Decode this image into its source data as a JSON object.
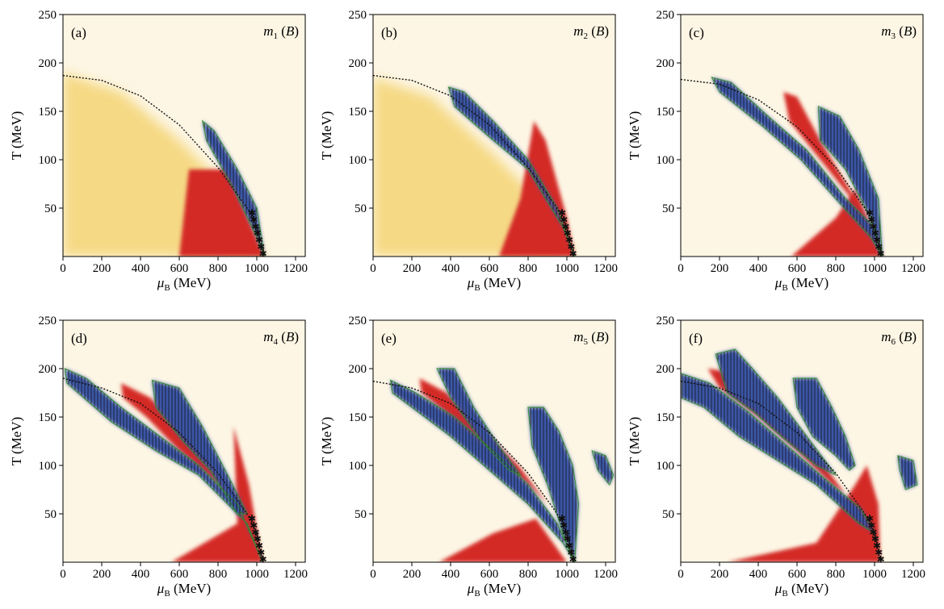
{
  "chart_data": [
    {
      "type": "heatmap",
      "panel_tag": "(a)",
      "param_var": "m",
      "param_sub": "1",
      "param_arg": "B",
      "xlabel_sym": "μ",
      "xlabel_sub": "B",
      "xlabel_unit": "(MeV)",
      "ylabel": "T (MeV)",
      "xlim": [
        0,
        1250
      ],
      "ylim": [
        0,
        250
      ],
      "xticks": [
        "0",
        "200",
        "400",
        "600",
        "800",
        "1000",
        "1200"
      ],
      "yticks": [
        "50",
        "100",
        "150",
        "200",
        "250"
      ],
      "colors": {
        "positive": "#d42a28",
        "negative": "#3a57a7",
        "zero": "#fdf6e4",
        "background": "#f5d880",
        "boundary": "#2e8b2e"
      },
      "phase_boundary": [
        [
          0,
          187
        ],
        [
          200,
          182
        ],
        [
          400,
          166
        ],
        [
          600,
          136
        ],
        [
          800,
          92
        ],
        [
          950,
          50
        ],
        [
          1000,
          30
        ],
        [
          1040,
          2
        ]
      ],
      "hatched_negative_regions": 1,
      "critical_end_marks": [
        [
          980,
          45
        ],
        [
          1040,
          2
        ]
      ]
    },
    {
      "type": "heatmap",
      "panel_tag": "(b)",
      "param_var": "m",
      "param_sub": "2",
      "param_arg": "B",
      "xlabel_sym": "μ",
      "xlabel_sub": "B",
      "xlabel_unit": "(MeV)",
      "ylabel": "T (MeV)",
      "xlim": [
        0,
        1250
      ],
      "ylim": [
        0,
        250
      ],
      "xticks": [
        "0",
        "200",
        "400",
        "600",
        "800",
        "1000",
        "1200"
      ],
      "yticks": [
        "50",
        "100",
        "150",
        "200",
        "250"
      ],
      "colors": {
        "positive": "#d42a28",
        "negative": "#3a57a7",
        "zero": "#fdf6e4",
        "background": "#f5d880",
        "boundary": "#2e8b2e"
      },
      "phase_boundary": [
        [
          0,
          187
        ],
        [
          200,
          182
        ],
        [
          400,
          166
        ],
        [
          600,
          136
        ],
        [
          800,
          92
        ],
        [
          950,
          50
        ],
        [
          1000,
          30
        ],
        [
          1040,
          2
        ]
      ],
      "hatched_negative_regions": 1
    },
    {
      "type": "heatmap",
      "panel_tag": "(c)",
      "param_var": "m",
      "param_sub": "3",
      "param_arg": "B",
      "xlabel_sym": "μ",
      "xlabel_sub": "B",
      "xlabel_unit": "(MeV)",
      "ylabel": "T (MeV)",
      "xlim": [
        0,
        1250
      ],
      "ylim": [
        0,
        250
      ],
      "xticks": [
        "0",
        "200",
        "400",
        "600",
        "800",
        "1000",
        "1200"
      ],
      "yticks": [
        "50",
        "100",
        "150",
        "200",
        "250"
      ],
      "colors": {
        "positive": "#d42a28",
        "negative": "#3a57a7",
        "zero": "#fdf6e4",
        "background": "#f7f0dc",
        "boundary": "#2e8b2e"
      },
      "phase_boundary": [
        [
          0,
          183
        ],
        [
          200,
          178
        ],
        [
          400,
          162
        ],
        [
          600,
          134
        ],
        [
          800,
          92
        ],
        [
          950,
          50
        ],
        [
          1000,
          30
        ],
        [
          1040,
          2
        ]
      ],
      "hatched_negative_regions": 2
    },
    {
      "type": "heatmap",
      "panel_tag": "(d)",
      "param_var": "m",
      "param_sub": "4",
      "param_arg": "B",
      "xlabel_sym": "μ",
      "xlabel_sub": "B",
      "xlabel_unit": "(MeV)",
      "ylabel": "T (MeV)",
      "xlim": [
        0,
        1250
      ],
      "ylim": [
        0,
        250
      ],
      "xticks": [
        "0",
        "200",
        "400",
        "600",
        "800",
        "1000",
        "1200"
      ],
      "yticks": [
        "50",
        "100",
        "150",
        "200",
        "250"
      ],
      "colors": {
        "positive": "#d42a28",
        "negative": "#3a57a7",
        "zero": "#fdf6e4",
        "background": "#f7f0dc",
        "boundary": "#2e8b2e"
      },
      "phase_boundary": [
        [
          0,
          190
        ],
        [
          200,
          180
        ],
        [
          400,
          164
        ],
        [
          600,
          134
        ],
        [
          800,
          92
        ],
        [
          950,
          50
        ],
        [
          1000,
          30
        ],
        [
          1030,
          2
        ]
      ],
      "hatched_negative_regions": 2
    },
    {
      "type": "heatmap",
      "panel_tag": "(e)",
      "param_var": "m",
      "param_sub": "5",
      "param_arg": "B",
      "xlabel_sym": "μ",
      "xlabel_sub": "B",
      "xlabel_unit": "(MeV)",
      "ylabel": "T (MeV)",
      "xlim": [
        0,
        1250
      ],
      "ylim": [
        0,
        250
      ],
      "xticks": [
        "0",
        "200",
        "400",
        "600",
        "800",
        "1000",
        "1200"
      ],
      "yticks": [
        "50",
        "100",
        "150",
        "200",
        "250"
      ],
      "colors": {
        "positive": "#d42a28",
        "negative": "#3a57a7",
        "zero": "#fdf6e4",
        "background": "#f7f0dc",
        "boundary": "#2e8b2e"
      },
      "phase_boundary": [
        [
          0,
          187
        ],
        [
          200,
          180
        ],
        [
          400,
          164
        ],
        [
          600,
          134
        ],
        [
          800,
          92
        ],
        [
          950,
          50
        ],
        [
          1000,
          30
        ],
        [
          1040,
          2
        ]
      ],
      "hatched_negative_regions": 4
    },
    {
      "type": "heatmap",
      "panel_tag": "(f)",
      "param_var": "m",
      "param_sub": "6",
      "param_arg": "B",
      "xlabel_sym": "μ",
      "xlabel_sub": "B",
      "xlabel_unit": "(MeV)",
      "ylabel": "T (MeV)",
      "xlim": [
        0,
        1250
      ],
      "ylim": [
        0,
        250
      ],
      "xticks": [
        "0",
        "200",
        "400",
        "600",
        "800",
        "1000",
        "1200"
      ],
      "yticks": [
        "50",
        "100",
        "150",
        "200",
        "250"
      ],
      "colors": {
        "positive": "#d42a28",
        "negative": "#3a57a7",
        "zero": "#fdf6e4",
        "background": "#f7f0dc",
        "boundary": "#2e8b2e"
      },
      "phase_boundary": [
        [
          0,
          187
        ],
        [
          200,
          180
        ],
        [
          400,
          164
        ],
        [
          600,
          134
        ],
        [
          800,
          92
        ],
        [
          950,
          50
        ],
        [
          1000,
          30
        ],
        [
          1030,
          2
        ]
      ],
      "hatched_negative_regions": 4
    }
  ]
}
